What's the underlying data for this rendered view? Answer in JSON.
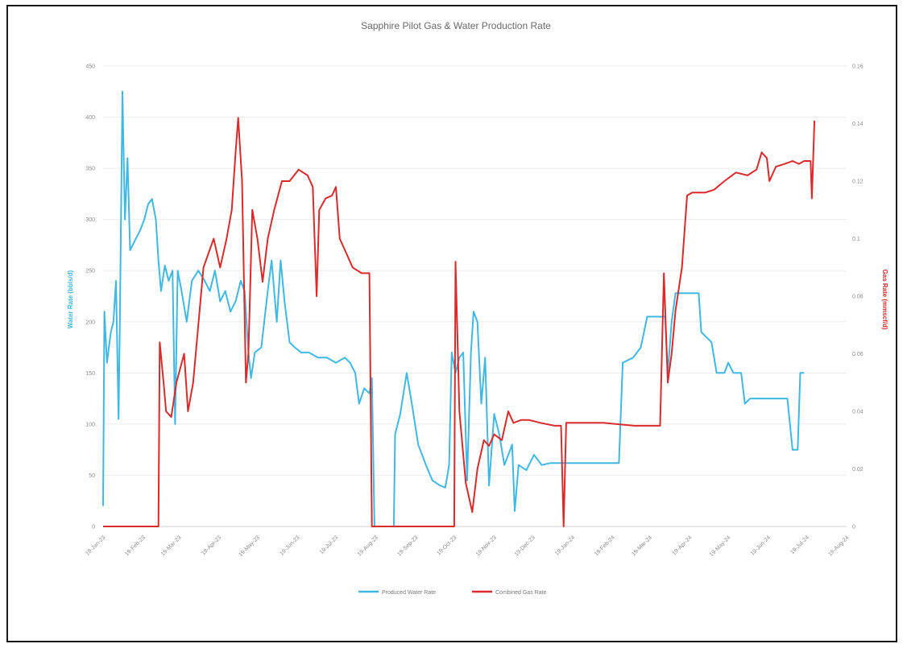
{
  "chart_data": {
    "type": "line",
    "title": "Sapphire Pilot Gas & Water Production Rate",
    "ylabel_left": "Water Rate (bbls/d)",
    "ylabel_right": "Gas Rate (mmscf/d)",
    "ylim_left": [
      0,
      450
    ],
    "ylim_right": [
      0,
      0.16
    ],
    "left_ticks": [
      "0",
      "50",
      "100",
      "150",
      "200",
      "250",
      "300",
      "350",
      "400",
      "450"
    ],
    "right_ticks": [
      "0",
      "0.02",
      "0.04",
      "0.06",
      "0.08",
      "0.1",
      "0.12",
      "0.14",
      "0.16"
    ],
    "x_range": [
      "2023-01-19",
      "2024-08-19"
    ],
    "x_ticks": [
      {
        "date": "2023-01-19",
        "label": "19-Jan-23"
      },
      {
        "date": "2023-02-19",
        "label": "19-Feb-23"
      },
      {
        "date": "2023-03-19",
        "label": "19-Mar-23"
      },
      {
        "date": "2023-04-19",
        "label": "19-Apr-23"
      },
      {
        "date": "2023-05-19",
        "label": "19-May-23"
      },
      {
        "date": "2023-06-19",
        "label": "19-Jun-23"
      },
      {
        "date": "2023-07-19",
        "label": "19-Jul-23"
      },
      {
        "date": "2023-08-19",
        "label": "19-Aug-23"
      },
      {
        "date": "2023-09-19",
        "label": "19-Sep-23"
      },
      {
        "date": "2023-10-19",
        "label": "19-Oct-23"
      },
      {
        "date": "2023-11-19",
        "label": "19-Nov-23"
      },
      {
        "date": "2023-12-19",
        "label": "19-Dec-23"
      },
      {
        "date": "2024-01-19",
        "label": "19-Jan-24"
      },
      {
        "date": "2024-02-19",
        "label": "19-Feb-24"
      },
      {
        "date": "2024-03-19",
        "label": "19-Mar-24"
      },
      {
        "date": "2024-04-19",
        "label": "19-Apr-24"
      },
      {
        "date": "2024-05-19",
        "label": "19-May-24"
      },
      {
        "date": "2024-06-19",
        "label": "19-Jun-24"
      },
      {
        "date": "2024-07-19",
        "label": "19-Jul-24"
      },
      {
        "date": "2024-08-19",
        "label": "19-Aug-24"
      }
    ],
    "grid": true,
    "legend_position": "bottom",
    "series": [
      {
        "name": "Produced Water Rate",
        "axis": "left",
        "color": "#3fb8e3",
        "points": [
          [
            "2023-01-19",
            20
          ],
          [
            "2023-01-20",
            210
          ],
          [
            "2023-01-22",
            160
          ],
          [
            "2023-01-25",
            190
          ],
          [
            "2023-01-27",
            200
          ],
          [
            "2023-01-29",
            240
          ],
          [
            "2023-01-31",
            105
          ],
          [
            "2023-02-01",
            200
          ],
          [
            "2023-02-03",
            425
          ],
          [
            "2023-02-05",
            300
          ],
          [
            "2023-02-07",
            360
          ],
          [
            "2023-02-09",
            270
          ],
          [
            "2023-02-13",
            280
          ],
          [
            "2023-02-17",
            290
          ],
          [
            "2023-02-20",
            300
          ],
          [
            "2023-02-23",
            315
          ],
          [
            "2023-02-26",
            320
          ],
          [
            "2023-03-01",
            300
          ],
          [
            "2023-03-03",
            260
          ],
          [
            "2023-03-05",
            230
          ],
          [
            "2023-03-08",
            255
          ],
          [
            "2023-03-11",
            240
          ],
          [
            "2023-03-14",
            250
          ],
          [
            "2023-03-16",
            100
          ],
          [
            "2023-03-18",
            250
          ],
          [
            "2023-03-21",
            230
          ],
          [
            "2023-03-25",
            200
          ],
          [
            "2023-03-29",
            240
          ],
          [
            "2023-04-03",
            250
          ],
          [
            "2023-04-08",
            240
          ],
          [
            "2023-04-12",
            230
          ],
          [
            "2023-04-16",
            250
          ],
          [
            "2023-04-20",
            220
          ],
          [
            "2023-04-24",
            230
          ],
          [
            "2023-04-28",
            210
          ],
          [
            "2023-05-02",
            220
          ],
          [
            "2023-05-06",
            240
          ],
          [
            "2023-05-09",
            230
          ],
          [
            "2023-05-12",
            170
          ],
          [
            "2023-05-14",
            145
          ],
          [
            "2023-05-17",
            170
          ],
          [
            "2023-05-22",
            175
          ],
          [
            "2023-05-27",
            230
          ],
          [
            "2023-05-30",
            260
          ],
          [
            "2023-06-03",
            200
          ],
          [
            "2023-06-06",
            260
          ],
          [
            "2023-06-09",
            220
          ],
          [
            "2023-06-13",
            180
          ],
          [
            "2023-06-17",
            175
          ],
          [
            "2023-06-22",
            170
          ],
          [
            "2023-06-28",
            170
          ],
          [
            "2023-07-05",
            165
          ],
          [
            "2023-07-12",
            165
          ],
          [
            "2023-07-19",
            160
          ],
          [
            "2023-07-26",
            165
          ],
          [
            "2023-07-30",
            160
          ],
          [
            "2023-08-03",
            150
          ],
          [
            "2023-08-06",
            120
          ],
          [
            "2023-08-10",
            135
          ],
          [
            "2023-08-14",
            130
          ],
          [
            "2023-08-16",
            145
          ],
          [
            "2023-08-18",
            0
          ],
          [
            "2023-09-02",
            0
          ],
          [
            "2023-09-03",
            90
          ],
          [
            "2023-09-07",
            110
          ],
          [
            "2023-09-12",
            150
          ],
          [
            "2023-09-16",
            120
          ],
          [
            "2023-09-21",
            80
          ],
          [
            "2023-09-27",
            60
          ],
          [
            "2023-10-02",
            45
          ],
          [
            "2023-10-08",
            40
          ],
          [
            "2023-10-12",
            38
          ],
          [
            "2023-10-15",
            60
          ],
          [
            "2023-10-17",
            170
          ],
          [
            "2023-10-20",
            150
          ],
          [
            "2023-10-23",
            165
          ],
          [
            "2023-10-26",
            170
          ],
          [
            "2023-10-29",
            45
          ],
          [
            "2023-11-01",
            170
          ],
          [
            "2023-11-03",
            210
          ],
          [
            "2023-11-06",
            200
          ],
          [
            "2023-11-09",
            120
          ],
          [
            "2023-11-12",
            165
          ],
          [
            "2023-11-15",
            40
          ],
          [
            "2023-11-19",
            110
          ],
          [
            "2023-11-23",
            90
          ],
          [
            "2023-11-27",
            60
          ],
          [
            "2023-11-30",
            70
          ],
          [
            "2023-12-03",
            80
          ],
          [
            "2023-12-05",
            15
          ],
          [
            "2023-12-08",
            60
          ],
          [
            "2023-12-14",
            55
          ],
          [
            "2023-12-20",
            70
          ],
          [
            "2023-12-26",
            60
          ],
          [
            "2024-01-02",
            62
          ],
          [
            "2024-01-19",
            62
          ],
          [
            "2024-02-01",
            62
          ],
          [
            "2024-02-20",
            62
          ],
          [
            "2024-02-24",
            62
          ],
          [
            "2024-02-27",
            160
          ],
          [
            "2024-03-06",
            165
          ],
          [
            "2024-03-12",
            175
          ],
          [
            "2024-03-17",
            205
          ],
          [
            "2024-03-31",
            205
          ],
          [
            "2024-04-02",
            150
          ],
          [
            "2024-04-05",
            200
          ],
          [
            "2024-04-08",
            228
          ],
          [
            "2024-04-26",
            228
          ],
          [
            "2024-04-28",
            190
          ],
          [
            "2024-05-06",
            180
          ],
          [
            "2024-05-10",
            150
          ],
          [
            "2024-05-16",
            150
          ],
          [
            "2024-05-19",
            160
          ],
          [
            "2024-05-23",
            150
          ],
          [
            "2024-05-29",
            150
          ],
          [
            "2024-06-01",
            120
          ],
          [
            "2024-06-05",
            125
          ],
          [
            "2024-06-25",
            125
          ],
          [
            "2024-07-04",
            125
          ],
          [
            "2024-07-08",
            75
          ],
          [
            "2024-07-12",
            75
          ],
          [
            "2024-07-14",
            150
          ],
          [
            "2024-07-17",
            150
          ]
        ]
      },
      {
        "name": "Combined Gas Rate",
        "axis": "right",
        "color": "#d92b2b",
        "points": [
          [
            "2023-01-19",
            0
          ],
          [
            "2023-02-07",
            0
          ],
          [
            "2023-02-26",
            0
          ],
          [
            "2023-03-03",
            0
          ],
          [
            "2023-03-04",
            0.064
          ],
          [
            "2023-03-07",
            0.05
          ],
          [
            "2023-03-09",
            0.04
          ],
          [
            "2023-03-13",
            0.038
          ],
          [
            "2023-03-17",
            0.05
          ],
          [
            "2023-03-20",
            0.055
          ],
          [
            "2023-03-23",
            0.06
          ],
          [
            "2023-03-26",
            0.04
          ],
          [
            "2023-03-30",
            0.05
          ],
          [
            "2023-04-03",
            0.07
          ],
          [
            "2023-04-07",
            0.09
          ],
          [
            "2023-04-11",
            0.095
          ],
          [
            "2023-04-15",
            0.1
          ],
          [
            "2023-04-20",
            0.09
          ],
          [
            "2023-04-25",
            0.1
          ],
          [
            "2023-04-29",
            0.11
          ],
          [
            "2023-05-02",
            0.13
          ],
          [
            "2023-05-04",
            0.142
          ],
          [
            "2023-05-07",
            0.12
          ],
          [
            "2023-05-10",
            0.05
          ],
          [
            "2023-05-12",
            0.06
          ],
          [
            "2023-05-15",
            0.11
          ],
          [
            "2023-05-19",
            0.1
          ],
          [
            "2023-05-23",
            0.085
          ],
          [
            "2023-05-27",
            0.1
          ],
          [
            "2023-06-01",
            0.11
          ],
          [
            "2023-06-07",
            0.12
          ],
          [
            "2023-06-13",
            0.12
          ],
          [
            "2023-06-20",
            0.124
          ],
          [
            "2023-06-27",
            0.122
          ],
          [
            "2023-07-01",
            0.118
          ],
          [
            "2023-07-04",
            0.08
          ],
          [
            "2023-07-06",
            0.11
          ],
          [
            "2023-07-11",
            0.114
          ],
          [
            "2023-07-16",
            0.115
          ],
          [
            "2023-07-19",
            0.118
          ],
          [
            "2023-07-22",
            0.1
          ],
          [
            "2023-07-27",
            0.095
          ],
          [
            "2023-08-01",
            0.09
          ],
          [
            "2023-08-08",
            0.088
          ],
          [
            "2023-08-14",
            0.088
          ],
          [
            "2023-08-16",
            0
          ],
          [
            "2023-10-19",
            0
          ],
          [
            "2023-10-20",
            0.092
          ],
          [
            "2023-10-23",
            0.04
          ],
          [
            "2023-10-28",
            0.015
          ],
          [
            "2023-11-02",
            0.005
          ],
          [
            "2023-11-06",
            0.02
          ],
          [
            "2023-11-11",
            0.03
          ],
          [
            "2023-11-15",
            0.028
          ],
          [
            "2023-11-19",
            0.032
          ],
          [
            "2023-11-25",
            0.03
          ],
          [
            "2023-11-30",
            0.04
          ],
          [
            "2023-12-04",
            0.036
          ],
          [
            "2023-12-10",
            0.037
          ],
          [
            "2023-12-16",
            0.037
          ],
          [
            "2023-12-25",
            0.036
          ],
          [
            "2024-01-05",
            0.035
          ],
          [
            "2024-01-10",
            0.035
          ],
          [
            "2024-01-12",
            0
          ],
          [
            "2024-01-14",
            0.036
          ],
          [
            "2024-01-26",
            0.036
          ],
          [
            "2024-02-12",
            0.036
          ],
          [
            "2024-03-07",
            0.035
          ],
          [
            "2024-03-20",
            0.035
          ],
          [
            "2024-03-27",
            0.035
          ],
          [
            "2024-03-30",
            0.088
          ],
          [
            "2024-04-02",
            0.05
          ],
          [
            "2024-04-05",
            0.06
          ],
          [
            "2024-04-08",
            0.075
          ],
          [
            "2024-04-13",
            0.09
          ],
          [
            "2024-04-17",
            0.115
          ],
          [
            "2024-04-21",
            0.116
          ],
          [
            "2024-05-01",
            0.116
          ],
          [
            "2024-05-08",
            0.117
          ],
          [
            "2024-05-16",
            0.12
          ],
          [
            "2024-05-25",
            0.123
          ],
          [
            "2024-06-03",
            0.122
          ],
          [
            "2024-06-10",
            0.124
          ],
          [
            "2024-06-14",
            0.13
          ],
          [
            "2024-06-18",
            0.128
          ],
          [
            "2024-06-20",
            0.12
          ],
          [
            "2024-06-25",
            0.125
          ],
          [
            "2024-07-02",
            0.126
          ],
          [
            "2024-07-08",
            0.127
          ],
          [
            "2024-07-13",
            0.126
          ],
          [
            "2024-07-17",
            0.127
          ],
          [
            "2024-07-22",
            0.127
          ],
          [
            "2024-07-23",
            0.114
          ],
          [
            "2024-07-25",
            0.141
          ]
        ]
      }
    ]
  }
}
